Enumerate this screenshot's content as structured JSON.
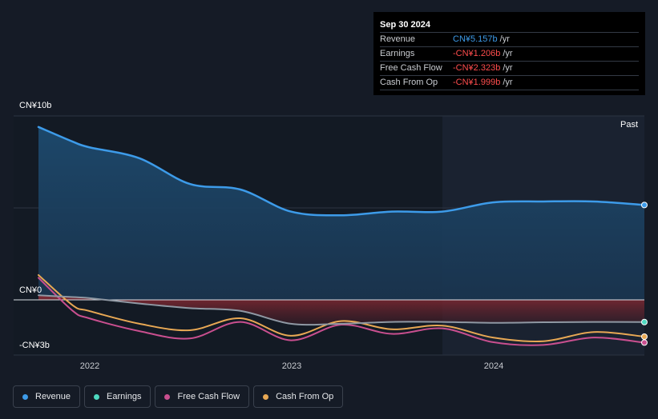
{
  "tooltip": {
    "date": "Sep 30 2024",
    "rows": [
      {
        "label": "Revenue",
        "value": "CN¥5.157b",
        "unit": "/yr",
        "color": "#3d9be9"
      },
      {
        "label": "Earnings",
        "value": "-CN¥1.206b",
        "unit": "/yr",
        "color": "#ff4d4d"
      },
      {
        "label": "Free Cash Flow",
        "value": "-CN¥2.323b",
        "unit": "/yr",
        "color": "#ff4d4d"
      },
      {
        "label": "Cash From Op",
        "value": "-CN¥1.999b",
        "unit": "/yr",
        "color": "#ff4d4d"
      }
    ]
  },
  "past_label": "Past",
  "chart_data": {
    "type": "line",
    "ylabels": {
      "top": "CN¥10b",
      "zero": "CN¥0",
      "bottom": "-CN¥3b"
    },
    "ylim": [
      -3,
      10
    ],
    "xlim": [
      2021.75,
      2024.75
    ],
    "x_ticks": [
      {
        "label": "2022",
        "x": 2022.0
      },
      {
        "label": "2023",
        "x": 2023.0
      },
      {
        "label": "2024",
        "x": 2024.0
      }
    ],
    "past_start": 2023.75,
    "series": [
      {
        "name": "Revenue",
        "color": "#3d9be9",
        "points": [
          [
            2021.75,
            9.4
          ],
          [
            2021.92,
            8.6
          ],
          [
            2022.0,
            8.3
          ],
          [
            2022.25,
            7.7
          ],
          [
            2022.5,
            6.3
          ],
          [
            2022.75,
            6.0
          ],
          [
            2023.0,
            4.8
          ],
          [
            2023.25,
            4.6
          ],
          [
            2023.5,
            4.8
          ],
          [
            2023.75,
            4.8
          ],
          [
            2024.0,
            5.3
          ],
          [
            2024.25,
            5.35
          ],
          [
            2024.5,
            5.35
          ],
          [
            2024.75,
            5.157
          ]
        ]
      },
      {
        "name": "Earnings",
        "color": "#4dd9c0",
        "points": [
          [
            2021.75,
            0.25
          ],
          [
            2021.92,
            0.15
          ],
          [
            2022.0,
            0.1
          ],
          [
            2022.25,
            -0.2
          ],
          [
            2022.5,
            -0.45
          ],
          [
            2022.75,
            -0.6
          ],
          [
            2023.0,
            -1.3
          ],
          [
            2023.25,
            -1.3
          ],
          [
            2023.5,
            -1.2
          ],
          [
            2023.75,
            -1.2
          ],
          [
            2024.0,
            -1.25
          ],
          [
            2024.25,
            -1.22
          ],
          [
            2024.5,
            -1.2
          ],
          [
            2024.75,
            -1.206
          ]
        ]
      },
      {
        "name": "Free Cash Flow",
        "color": "#c94f8f",
        "points": [
          [
            2021.75,
            1.2
          ],
          [
            2021.92,
            -0.6
          ],
          [
            2022.0,
            -1.0
          ],
          [
            2022.25,
            -1.7
          ],
          [
            2022.5,
            -2.1
          ],
          [
            2022.75,
            -1.2
          ],
          [
            2023.0,
            -2.2
          ],
          [
            2023.25,
            -1.35
          ],
          [
            2023.5,
            -1.85
          ],
          [
            2023.75,
            -1.55
          ],
          [
            2024.0,
            -2.3
          ],
          [
            2024.25,
            -2.45
          ],
          [
            2024.5,
            -2.05
          ],
          [
            2024.75,
            -2.323
          ]
        ]
      },
      {
        "name": "Cash From Op",
        "color": "#e8a854",
        "points": [
          [
            2021.75,
            1.35
          ],
          [
            2021.92,
            -0.3
          ],
          [
            2022.0,
            -0.6
          ],
          [
            2022.25,
            -1.3
          ],
          [
            2022.5,
            -1.65
          ],
          [
            2022.75,
            -1.0
          ],
          [
            2023.0,
            -1.95
          ],
          [
            2023.25,
            -1.15
          ],
          [
            2023.5,
            -1.6
          ],
          [
            2023.75,
            -1.4
          ],
          [
            2024.0,
            -2.05
          ],
          [
            2024.25,
            -2.25
          ],
          [
            2024.5,
            -1.75
          ],
          [
            2024.75,
            -1.999
          ]
        ]
      }
    ]
  },
  "legend": [
    {
      "label": "Revenue",
      "color": "#3d9be9"
    },
    {
      "label": "Earnings",
      "color": "#4dd9c0"
    },
    {
      "label": "Free Cash Flow",
      "color": "#c94f8f"
    },
    {
      "label": "Cash From Op",
      "color": "#e8a854"
    }
  ]
}
